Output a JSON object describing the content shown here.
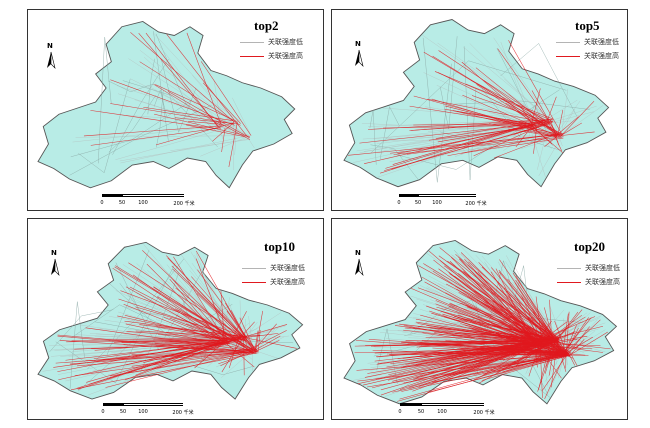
{
  "colors": {
    "land": "#b8ece6",
    "border": "#555555",
    "low": "#b4b4b4",
    "high": "#e0191f"
  },
  "panels": [
    {
      "title": "top2",
      "legend_low": "关联强度低",
      "legend_high": "关联强度高",
      "north": "N",
      "scale": [
        "0",
        "50",
        "100",
        "200 千米"
      ],
      "density": 2,
      "high_share": 0.35
    },
    {
      "title": "top5",
      "legend_low": "关联强度低",
      "legend_high": "关联强度高",
      "north": "N",
      "scale": [
        "0",
        "50",
        "100",
        "200 千米"
      ],
      "density": 5,
      "high_share": 0.45
    },
    {
      "title": "top10",
      "legend_low": "关联强度低",
      "legend_high": "关联强度高",
      "north": "N",
      "scale": [
        "0",
        "50",
        "100",
        "200 千米"
      ],
      "density": 10,
      "high_share": 0.5
    },
    {
      "title": "top20",
      "legend_low": "关联强度低",
      "legend_high": "关联强度高",
      "north": "N",
      "scale": [
        "0",
        "50",
        "100",
        "200 千米"
      ],
      "density": 20,
      "high_share": 0.55
    }
  ]
}
